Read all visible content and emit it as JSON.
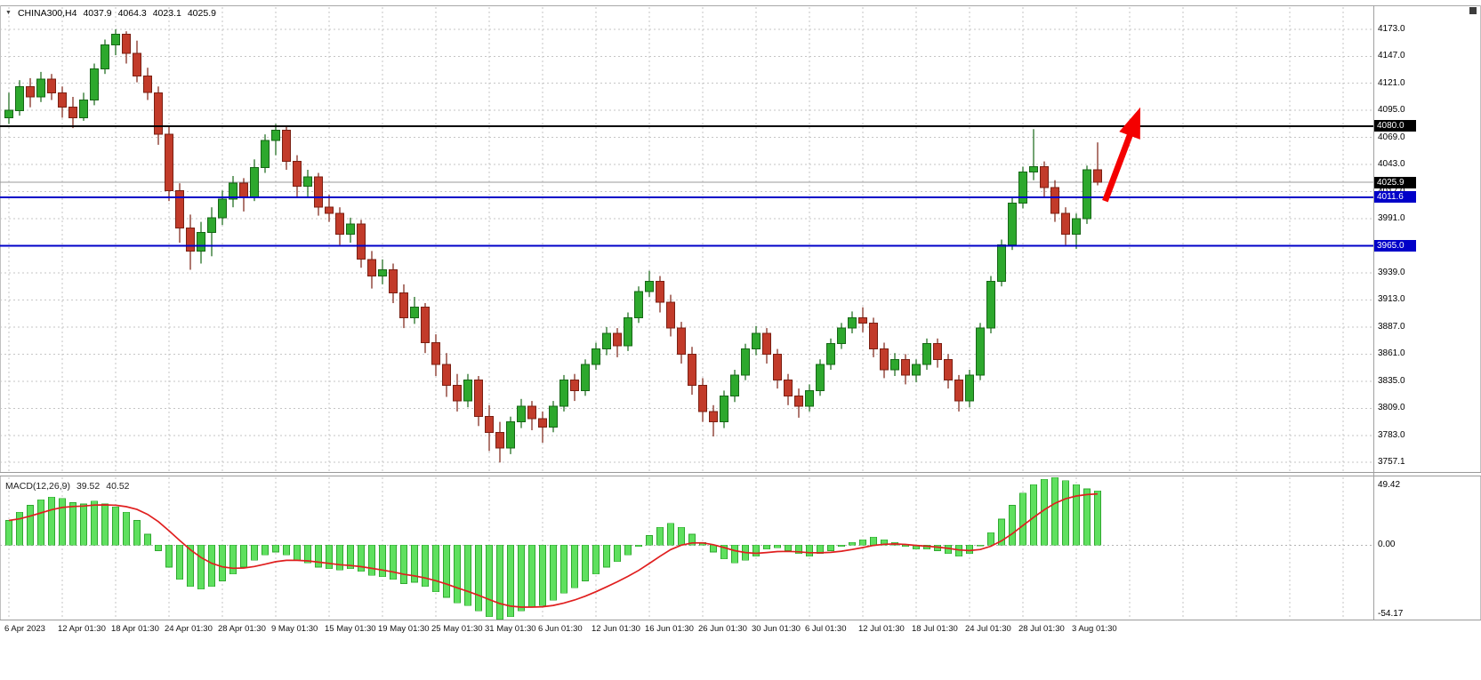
{
  "title_overlay": {
    "symbol": "CHINA300,H4",
    "open": "4037.9",
    "high": "4064.3",
    "low": "4023.1",
    "close": "4025.9"
  },
  "macd_overlay": {
    "name": "MACD(12,26,9)",
    "macd_value": "39.52",
    "signal_value": "40.52"
  },
  "chart_data": {
    "type": "candlestick",
    "symbol": "CHINA300",
    "timeframe": "H4",
    "x_labels": [
      "6 Apr 2023",
      "12 Apr 01:30",
      "18 Apr 01:30",
      "24 Apr 01:30",
      "28 Apr 01:30",
      "9 May 01:30",
      "15 May 01:30",
      "19 May 01:30",
      "25 May 01:30",
      "31 May 01:30",
      "6 Jun 01:30",
      "12 Jun 01:30",
      "16 Jun 01:30",
      "26 Jun 01:30",
      "30 Jun 01:30",
      "6 Jul 01:30",
      "12 Jul 01:30",
      "18 Jul 01:30",
      "24 Jul 01:30",
      "28 Jul 01:30",
      "3 Aug 01:30"
    ],
    "x_label_step": 5,
    "price_axis_ticks": [
      4173.0,
      4147.0,
      4121.0,
      4095.0,
      4069.0,
      4043.0,
      4017.0,
      3991.0,
      3965.0,
      3939.0,
      3913.0,
      3887.0,
      3861.0,
      3835.0,
      3809.0,
      3783.0,
      3757.1
    ],
    "price_range": {
      "min": 3747,
      "max": 4201
    },
    "candles": [
      [
        4088,
        4112,
        4082,
        4095
      ],
      [
        4095,
        4124,
        4090,
        4118
      ],
      [
        4118,
        4126,
        4098,
        4108
      ],
      [
        4108,
        4132,
        4103,
        4125
      ],
      [
        4125,
        4130,
        4105,
        4112
      ],
      [
        4112,
        4118,
        4088,
        4098
      ],
      [
        4098,
        4108,
        4078,
        4088
      ],
      [
        4088,
        4112,
        4085,
        4105
      ],
      [
        4105,
        4140,
        4100,
        4135
      ],
      [
        4135,
        4163,
        4130,
        4158
      ],
      [
        4158,
        4173,
        4148,
        4168
      ],
      [
        4168,
        4171,
        4140,
        4150
      ],
      [
        4150,
        4162,
        4122,
        4128
      ],
      [
        4128,
        4136,
        4105,
        4112
      ],
      [
        4112,
        4118,
        4062,
        4072
      ],
      [
        4072,
        4080,
        4008,
        4018
      ],
      [
        4018,
        4025,
        3968,
        3982
      ],
      [
        3982,
        3995,
        3942,
        3960
      ],
      [
        3960,
        3988,
        3948,
        3978
      ],
      [
        3978,
        4002,
        3955,
        3992
      ],
      [
        3992,
        4018,
        3985,
        4010
      ],
      [
        4010,
        4032,
        4002,
        4025
      ],
      [
        4025,
        4030,
        3998,
        4012
      ],
      [
        4012,
        4048,
        4008,
        4040
      ],
      [
        4040,
        4072,
        4035,
        4066
      ],
      [
        4066,
        4082,
        4052,
        4076
      ],
      [
        4076,
        4079,
        4038,
        4046
      ],
      [
        4046,
        4052,
        4012,
        4022
      ],
      [
        4022,
        4038,
        4012,
        4031
      ],
      [
        4031,
        4035,
        3994,
        4002
      ],
      [
        4002,
        4014,
        3988,
        3996
      ],
      [
        3996,
        4002,
        3966,
        3976
      ],
      [
        3976,
        3992,
        3968,
        3986
      ],
      [
        3986,
        3990,
        3944,
        3952
      ],
      [
        3952,
        3960,
        3924,
        3936
      ],
      [
        3936,
        3952,
        3928,
        3942
      ],
      [
        3942,
        3948,
        3910,
        3920
      ],
      [
        3920,
        3928,
        3886,
        3896
      ],
      [
        3896,
        3916,
        3890,
        3906
      ],
      [
        3906,
        3910,
        3862,
        3872
      ],
      [
        3872,
        3880,
        3840,
        3851
      ],
      [
        3851,
        3862,
        3820,
        3831
      ],
      [
        3831,
        3842,
        3806,
        3816
      ],
      [
        3816,
        3842,
        3810,
        3836
      ],
      [
        3836,
        3840,
        3792,
        3801
      ],
      [
        3801,
        3812,
        3768,
        3786
      ],
      [
        3786,
        3796,
        3757,
        3771
      ],
      [
        3771,
        3801,
        3765,
        3796
      ],
      [
        3796,
        3818,
        3790,
        3811
      ],
      [
        3811,
        3816,
        3788,
        3799
      ],
      [
        3799,
        3806,
        3776,
        3791
      ],
      [
        3791,
        3816,
        3786,
        3811
      ],
      [
        3811,
        3841,
        3806,
        3836
      ],
      [
        3836,
        3842,
        3816,
        3826
      ],
      [
        3826,
        3856,
        3821,
        3851
      ],
      [
        3851,
        3872,
        3846,
        3866
      ],
      [
        3866,
        3887,
        3860,
        3881
      ],
      [
        3881,
        3886,
        3858,
        3869
      ],
      [
        3869,
        3901,
        3864,
        3896
      ],
      [
        3896,
        3926,
        3891,
        3921
      ],
      [
        3921,
        3941,
        3916,
        3931
      ],
      [
        3931,
        3936,
        3901,
        3911
      ],
      [
        3911,
        3918,
        3878,
        3886
      ],
      [
        3886,
        3892,
        3852,
        3861
      ],
      [
        3861,
        3868,
        3822,
        3831
      ],
      [
        3831,
        3838,
        3796,
        3806
      ],
      [
        3806,
        3812,
        3782,
        3796
      ],
      [
        3796,
        3826,
        3790,
        3821
      ],
      [
        3821,
        3846,
        3815,
        3841
      ],
      [
        3841,
        3871,
        3836,
        3866
      ],
      [
        3866,
        3888,
        3860,
        3881
      ],
      [
        3881,
        3886,
        3852,
        3861
      ],
      [
        3861,
        3866,
        3828,
        3836
      ],
      [
        3836,
        3842,
        3812,
        3821
      ],
      [
        3821,
        3828,
        3800,
        3811
      ],
      [
        3811,
        3832,
        3806,
        3826
      ],
      [
        3826,
        3856,
        3821,
        3851
      ],
      [
        3851,
        3876,
        3846,
        3871
      ],
      [
        3871,
        3891,
        3866,
        3886
      ],
      [
        3886,
        3902,
        3881,
        3896
      ],
      [
        3896,
        3906,
        3882,
        3891
      ],
      [
        3891,
        3896,
        3858,
        3866
      ],
      [
        3866,
        3872,
        3838,
        3846
      ],
      [
        3846,
        3862,
        3840,
        3856
      ],
      [
        3856,
        3861,
        3832,
        3841
      ],
      [
        3841,
        3856,
        3834,
        3851
      ],
      [
        3851,
        3876,
        3846,
        3871
      ],
      [
        3871,
        3876,
        3848,
        3856
      ],
      [
        3856,
        3861,
        3828,
        3836
      ],
      [
        3836,
        3841,
        3806,
        3816
      ],
      [
        3816,
        3846,
        3810,
        3841
      ],
      [
        3841,
        3891,
        3836,
        3886
      ],
      [
        3886,
        3936,
        3881,
        3931
      ],
      [
        3931,
        3971,
        3926,
        3966
      ],
      [
        3966,
        4011,
        3961,
        4006
      ],
      [
        4006,
        4041,
        4001,
        4036
      ],
      [
        4036,
        4077,
        4028,
        4041
      ],
      [
        4041,
        4046,
        4012,
        4021
      ],
      [
        4021,
        4028,
        3988,
        3996
      ],
      [
        3996,
        4002,
        3966,
        3976
      ],
      [
        3976,
        3996,
        3962,
        3991
      ],
      [
        3991,
        4042,
        3986,
        4038
      ],
      [
        4037.9,
        4064.3,
        4023.1,
        4025.9
      ]
    ],
    "hlines": [
      {
        "price": 4080.0,
        "color": "#000000",
        "label": "4080.0"
      },
      {
        "price": 4011.6,
        "color": "#0000C8",
        "label": "4011.6"
      },
      {
        "price": 3965.0,
        "color": "#0000C8",
        "label": "3965.0"
      }
    ],
    "current_price": {
      "value": 4025.9,
      "label": "4025.9",
      "tag_color": "#000000"
    },
    "arrow": {
      "from_index": 102.7,
      "from_price": 4008,
      "to_index": 106,
      "to_price": 4098,
      "color": "#F40000"
    },
    "macd": {
      "histogram": [
        18,
        24,
        29,
        33,
        35,
        34,
        31,
        30,
        32,
        30,
        28,
        24,
        18,
        8,
        -4,
        -16,
        -25,
        -30,
        -32,
        -30,
        -26,
        -21,
        -16,
        -11,
        -7,
        -5,
        -7,
        -11,
        -13,
        -16,
        -17,
        -18,
        -17,
        -19,
        -22,
        -23,
        -25,
        -28,
        -27,
        -30,
        -34,
        -38,
        -42,
        -44,
        -48,
        -52,
        -54,
        -52,
        -48,
        -45,
        -44,
        -40,
        -35,
        -31,
        -26,
        -21,
        -16,
        -12,
        -7,
        -1,
        7,
        13,
        16,
        13,
        8,
        2,
        -5,
        -10,
        -13,
        -11,
        -8,
        -3,
        -2,
        -4,
        -6,
        -8,
        -6,
        -4,
        -1,
        2,
        4,
        6,
        4,
        2,
        -1,
        -3,
        -3,
        -4,
        -6,
        -8,
        -6,
        0,
        9,
        19,
        29,
        38,
        44,
        48,
        49.4,
        47,
        44,
        41,
        39.52
      ],
      "signal_period": 9,
      "scale": {
        "min": -54.17,
        "max": 49.42
      },
      "axis_labels": {
        "max": "49.42",
        "zero": "0.00",
        "min": "-54.17"
      }
    },
    "colors": {
      "background": "#FFFFFF",
      "grid": "#c6c6c6",
      "bull_fill": "#2DA82D",
      "bull_stroke": "#156615",
      "bear_fill": "#C23B2A",
      "bear_stroke": "#7A1F12",
      "macd_bar_fill": "#5FE05F",
      "macd_bar_stroke": "#2FA82F",
      "macd_signal": "#E01F1F",
      "current_price_line": "#9a9a9a"
    }
  }
}
